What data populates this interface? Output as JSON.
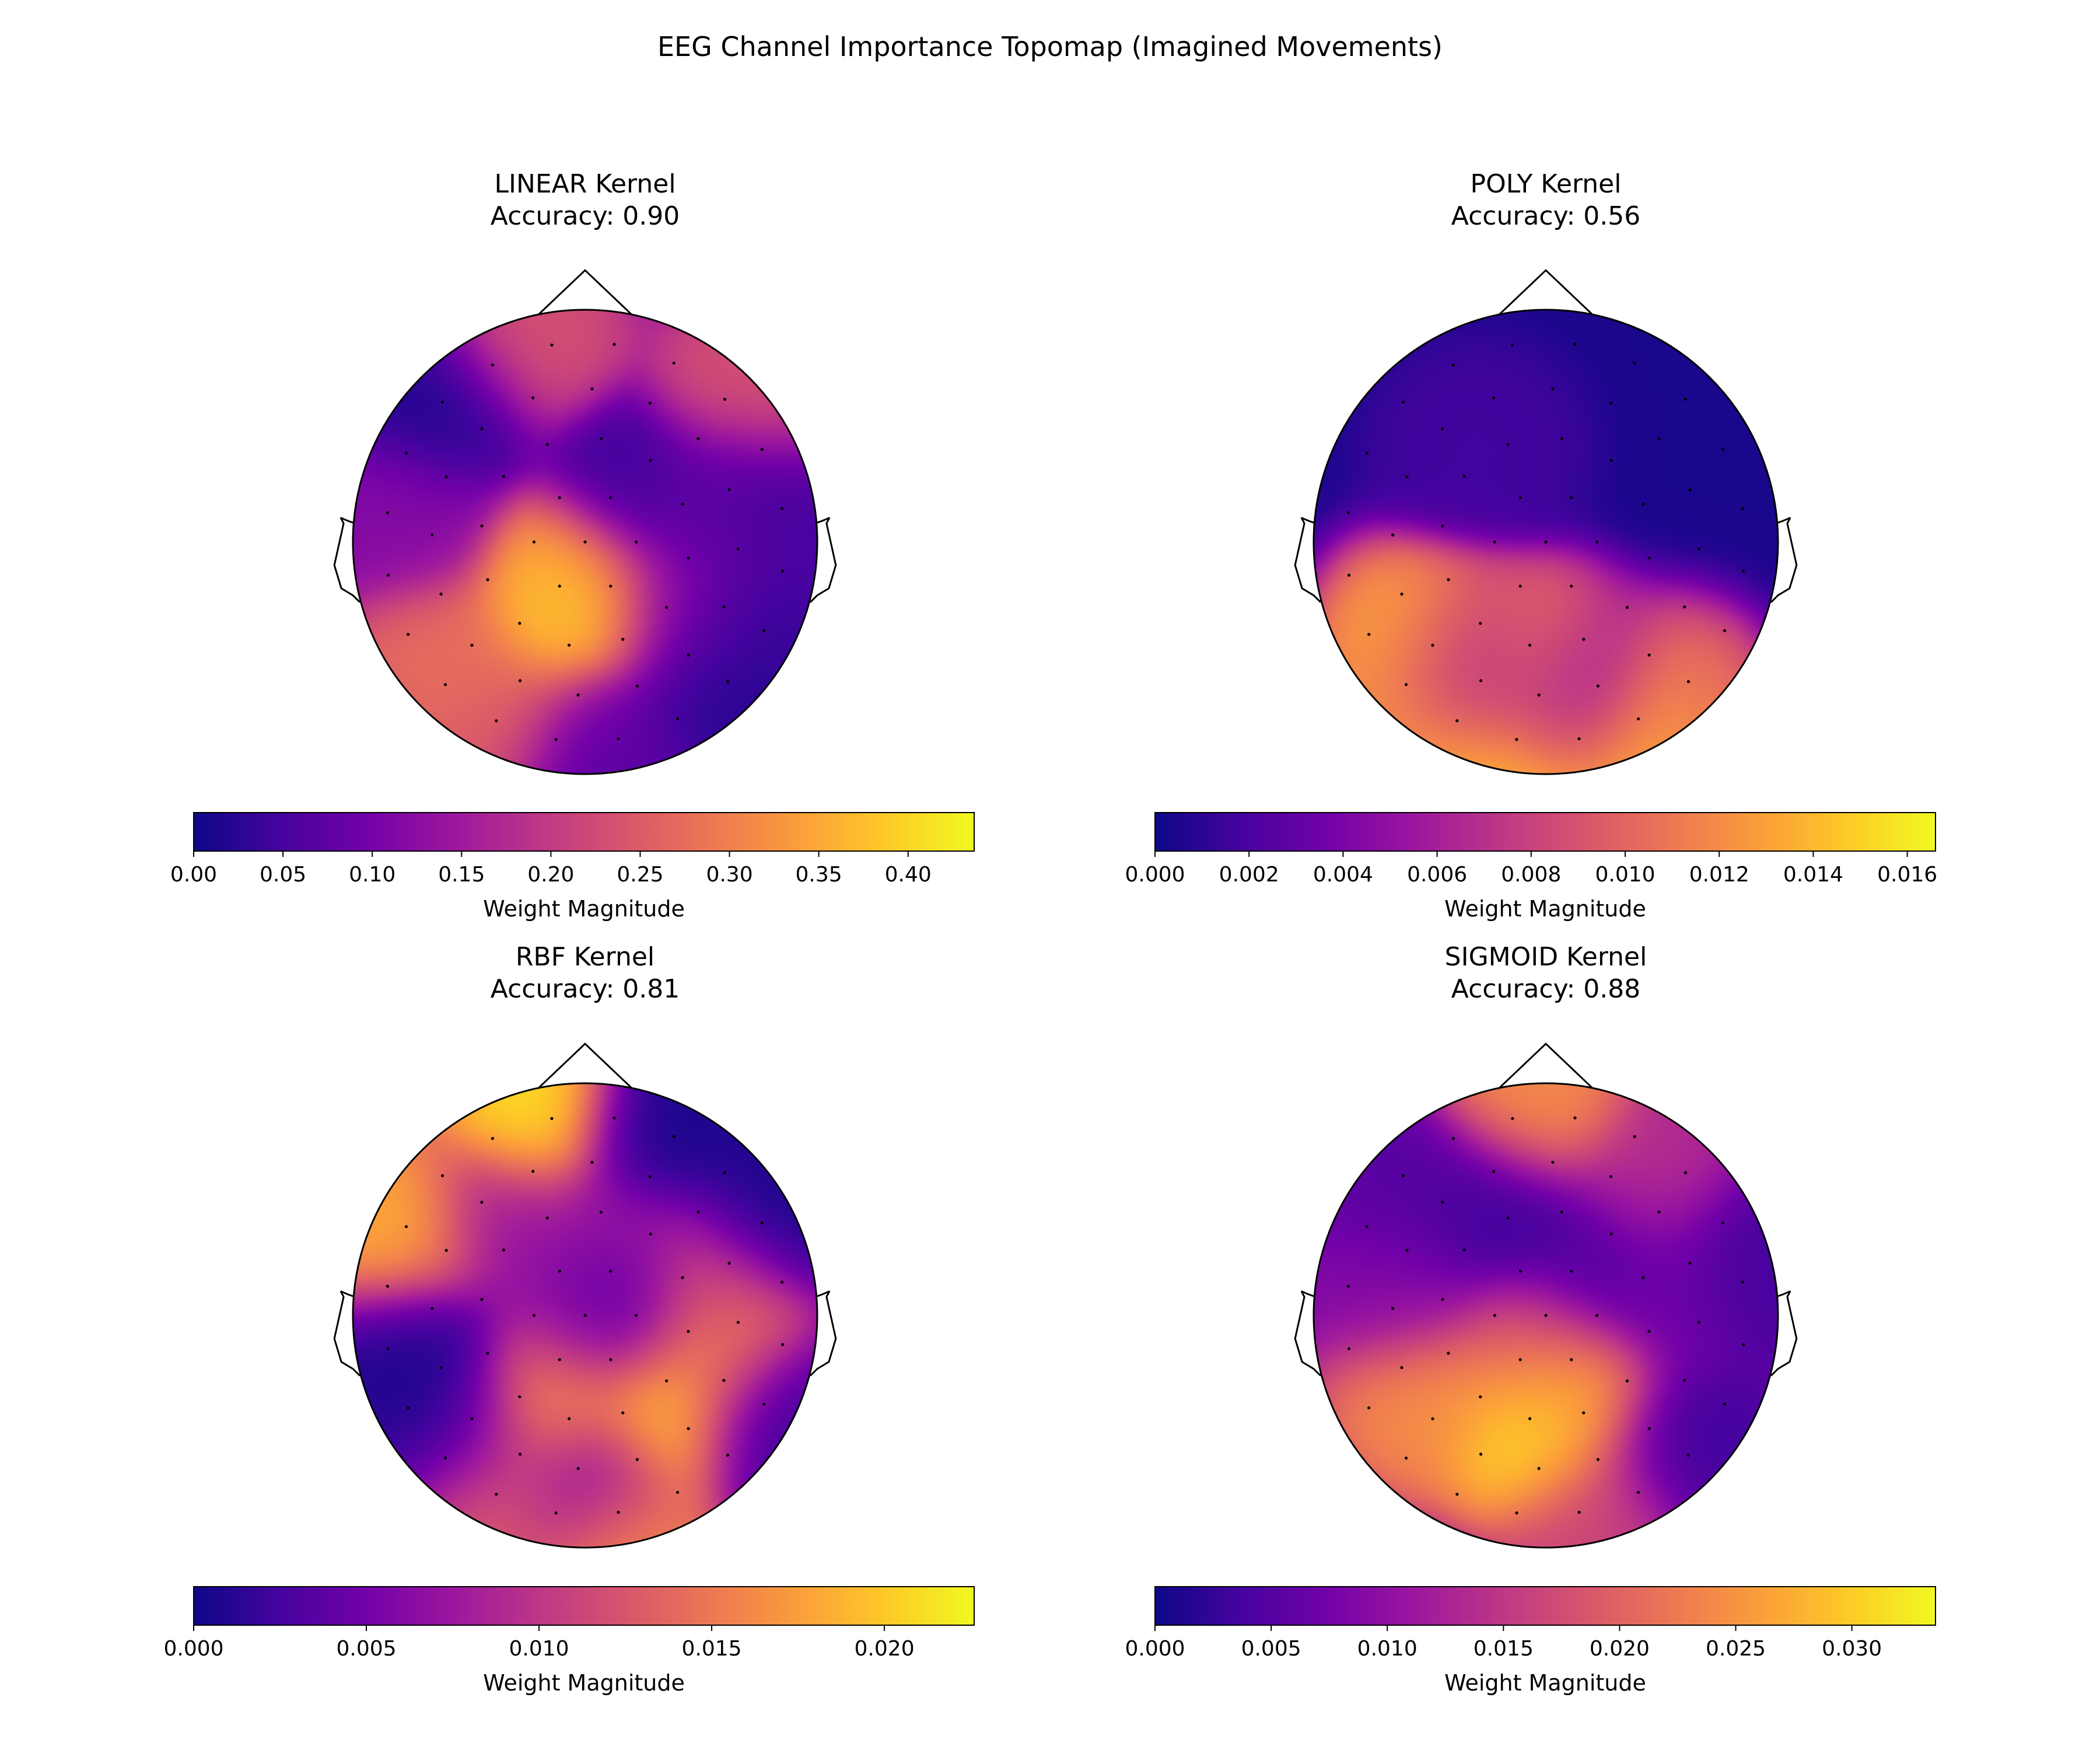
{
  "figure": {
    "title": "EEG Channel Importance Topomap (Imagined Movements)"
  },
  "colormap": {
    "name": "plasma",
    "stops": [
      "#0d0887",
      "#46039f",
      "#7201a8",
      "#9c179e",
      "#bd3786",
      "#d8576b",
      "#ed7953",
      "#fb9f3a",
      "#fdca26",
      "#f0f921"
    ]
  },
  "chart_data": [
    {
      "type": "heatmap",
      "subtype": "topomap",
      "title": "LINEAR Kernel",
      "subtitle": "Accuracy: 0.90",
      "accuracy": 0.9,
      "colorbar": {
        "label": "Weight Magnitude",
        "range": [
          0,
          0.437
        ],
        "ticks": [
          0.0,
          0.05,
          0.1,
          0.15,
          0.2,
          0.25,
          0.3,
          0.35,
          0.4
        ],
        "tick_labels": [
          "0.00",
          "0.05",
          "0.10",
          "0.15",
          "0.20",
          "0.25",
          "0.30",
          "0.35",
          "0.40"
        ]
      },
      "hotspots": [
        {
          "x": -0.04,
          "y": -0.32,
          "value": 0.42
        },
        {
          "x": -0.08,
          "y": -0.16,
          "value": 0.35
        },
        {
          "x": -0.62,
          "y": -0.5,
          "value": 0.28
        },
        {
          "x": -0.32,
          "y": -0.75,
          "value": 0.26
        },
        {
          "x": -0.25,
          "y": 0.86,
          "value": 0.24
        },
        {
          "x": 0.68,
          "y": 0.62,
          "value": 0.24
        },
        {
          "x": 0.36,
          "y": -0.28,
          "value": 0.16
        },
        {
          "x": -0.75,
          "y": 0.1,
          "value": 0.12
        },
        {
          "x": 0.52,
          "y": 0.12,
          "value": 0.1
        },
        {
          "x": 0.1,
          "y": -0.88,
          "value": 0.12
        },
        {
          "x": -0.6,
          "y": 0.58,
          "value": 0.01
        },
        {
          "x": 0.2,
          "y": 0.22,
          "value": 0.03
        },
        {
          "x": 0.56,
          "y": -0.35,
          "value": 0.02
        },
        {
          "x": 0.52,
          "y": -0.7,
          "value": 0.02
        },
        {
          "x": 0.08,
          "y": -0.92,
          "value": 0.03
        },
        {
          "x": 0.68,
          "y": 0.18,
          "value": 0.03
        }
      ],
      "background": 0.09
    },
    {
      "type": "heatmap",
      "subtype": "topomap",
      "title": "POLY Kernel",
      "subtitle": "Accuracy: 0.56",
      "accuracy": 0.56,
      "colorbar": {
        "label": "Weight Magnitude",
        "range": [
          0,
          0.0166
        ],
        "ticks": [
          0.0,
          0.002,
          0.004,
          0.006,
          0.008,
          0.01,
          0.012,
          0.014,
          0.016
        ],
        "tick_labels": [
          "0.000",
          "0.002",
          "0.004",
          "0.006",
          "0.008",
          "0.010",
          "0.012",
          "0.014",
          "0.016"
        ]
      },
      "hotspots": [
        {
          "x": 0.0,
          "y": -0.96,
          "value": 0.0166
        },
        {
          "x": -0.3,
          "y": -0.9,
          "value": 0.016
        },
        {
          "x": 0.35,
          "y": -0.88,
          "value": 0.016
        },
        {
          "x": -0.55,
          "y": -0.72,
          "value": 0.013
        },
        {
          "x": 0.55,
          "y": -0.72,
          "value": 0.011
        },
        {
          "x": -0.55,
          "y": -0.42,
          "value": 0.014
        },
        {
          "x": -0.08,
          "y": -0.55,
          "value": 0.015
        },
        {
          "x": -0.3,
          "y": -0.5,
          "value": 0.008
        },
        {
          "x": 0.1,
          "y": -0.62,
          "value": 0.006
        },
        {
          "x": -0.3,
          "y": 0.4,
          "value": 0.0018
        },
        {
          "x": 0.1,
          "y": -0.74,
          "value": 0.0005
        },
        {
          "x": -0.3,
          "y": -0.62,
          "value": 0.001
        }
      ],
      "background": 0.0004
    },
    {
      "type": "heatmap",
      "subtype": "topomap",
      "title": "RBF Kernel",
      "subtitle": "Accuracy: 0.81",
      "accuracy": 0.81,
      "colorbar": {
        "label": "Weight Magnitude",
        "range": [
          0,
          0.0226
        ],
        "ticks": [
          0.0,
          0.005,
          0.01,
          0.015,
          0.02
        ],
        "tick_labels": [
          "0.000",
          "0.005",
          "0.010",
          "0.015",
          "0.020"
        ]
      },
      "hotspots": [
        {
          "x": -0.22,
          "y": 0.86,
          "value": 0.022
        },
        {
          "x": -0.78,
          "y": 0.35,
          "value": 0.019
        },
        {
          "x": 0.33,
          "y": -0.42,
          "value": 0.021
        },
        {
          "x": -0.15,
          "y": -0.4,
          "value": 0.021
        },
        {
          "x": 0.54,
          "y": -0.12,
          "value": 0.016
        },
        {
          "x": 0.5,
          "y": 0.15,
          "value": 0.012
        },
        {
          "x": -0.35,
          "y": -0.78,
          "value": 0.014
        },
        {
          "x": 0.12,
          "y": -0.92,
          "value": 0.018
        },
        {
          "x": -0.05,
          "y": -0.1,
          "value": 0.008
        },
        {
          "x": 0.1,
          "y": 0.3,
          "value": 0.008
        },
        {
          "x": -0.35,
          "y": 0.4,
          "value": 0.007
        },
        {
          "x": 0.3,
          "y": 0.78,
          "value": 0.0004
        },
        {
          "x": 0.75,
          "y": 0.45,
          "value": 0.0003
        },
        {
          "x": -0.72,
          "y": -0.15,
          "value": 0.0005
        },
        {
          "x": 0.15,
          "y": 0.05,
          "value": 0.0008
        },
        {
          "x": -0.5,
          "y": -0.48,
          "value": 0.0008
        },
        {
          "x": 0.0,
          "y": -0.7,
          "value": 0.0012
        },
        {
          "x": 0.78,
          "y": -0.45,
          "value": 0.002
        }
      ],
      "background": 0.005
    },
    {
      "type": "heatmap",
      "subtype": "topomap",
      "title": "SIGMOID Kernel",
      "subtitle": "Accuracy: 0.88",
      "accuracy": 0.88,
      "colorbar": {
        "label": "Weight Magnitude",
        "range": [
          0,
          0.0336
        ],
        "ticks": [
          0.0,
          0.005,
          0.01,
          0.015,
          0.02,
          0.025,
          0.03
        ],
        "tick_labels": [
          "0.000",
          "0.005",
          "0.010",
          "0.015",
          "0.020",
          "0.025",
          "0.030"
        ]
      },
      "hotspots": [
        {
          "x": -0.05,
          "y": -0.48,
          "value": 0.033
        },
        {
          "x": 0.12,
          "y": -0.35,
          "value": 0.027
        },
        {
          "x": -0.52,
          "y": -0.35,
          "value": 0.025
        },
        {
          "x": -0.05,
          "y": 0.88,
          "value": 0.025
        },
        {
          "x": -0.05,
          "y": -0.12,
          "value": 0.018
        },
        {
          "x": 0.22,
          "y": -0.85,
          "value": 0.017
        },
        {
          "x": 0.45,
          "y": 0.55,
          "value": 0.014
        },
        {
          "x": -0.62,
          "y": 0.1,
          "value": 0.009
        },
        {
          "x": 0.55,
          "y": 0.1,
          "value": 0.008
        },
        {
          "x": -0.2,
          "y": 0.45,
          "value": 0.002
        },
        {
          "x": 0.2,
          "y": 0.2,
          "value": 0.003
        },
        {
          "x": 0.55,
          "y": -0.55,
          "value": 0.003
        },
        {
          "x": 0.82,
          "y": 0.2,
          "value": 0.003
        },
        {
          "x": -0.55,
          "y": 0.5,
          "value": 0.005
        }
      ],
      "background": 0.008
    }
  ]
}
